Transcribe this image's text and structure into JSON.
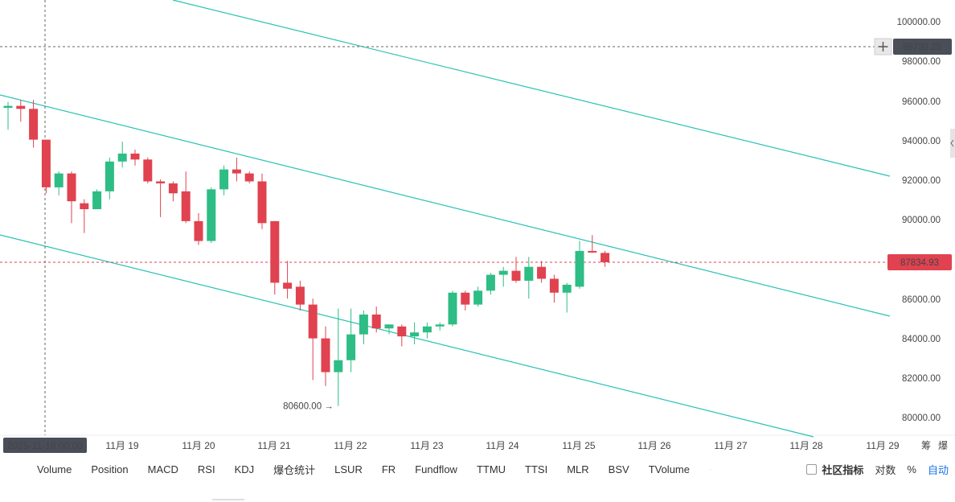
{
  "chart_data": {
    "type": "candlestick",
    "y_axis_ticks": [
      "100000.00",
      "98000.00",
      "96000.00",
      "94000.00",
      "92000.00",
      "90000.00",
      "86000.00",
      "84000.00",
      "82000.00",
      "80000.00"
    ],
    "x_axis_ticks": [
      "11月 19",
      "11月 20",
      "11月 21",
      "11月 22",
      "11月 23",
      "11月 24",
      "11月 25",
      "11月 26",
      "11月 27",
      "11月 28",
      "11月 29"
    ],
    "crosshair_price": "98730.25",
    "crosshair_date": "2025-11-18 00:00",
    "current_price": "87834.93",
    "low_annotation": "80600.00",
    "bull_color": "#2ebd85",
    "bear_color": "#e0424f",
    "candles": [
      {
        "o": 95600,
        "h": 95900,
        "l": 94500,
        "c": 95700
      },
      {
        "o": 95700,
        "h": 96000,
        "l": 94900,
        "c": 95550
      },
      {
        "o": 95550,
        "h": 96000,
        "l": 93600,
        "c": 94000
      },
      {
        "o": 94000,
        "h": 94000,
        "l": 91300,
        "c": 91600
      },
      {
        "o": 91600,
        "h": 92400,
        "l": 91200,
        "c": 92300
      },
      {
        "o": 92300,
        "h": 92400,
        "l": 89800,
        "c": 90900
      },
      {
        "o": 90800,
        "h": 91000,
        "l": 89300,
        "c": 90500
      },
      {
        "o": 90500,
        "h": 91500,
        "l": 90500,
        "c": 91400
      },
      {
        "o": 91400,
        "h": 93100,
        "l": 91000,
        "c": 92900
      },
      {
        "o": 92900,
        "h": 93900,
        "l": 92600,
        "c": 93300
      },
      {
        "o": 93300,
        "h": 93500,
        "l": 92700,
        "c": 93000
      },
      {
        "o": 93000,
        "h": 93100,
        "l": 91800,
        "c": 91900
      },
      {
        "o": 91900,
        "h": 92000,
        "l": 90100,
        "c": 91800
      },
      {
        "o": 91800,
        "h": 91900,
        "l": 90900,
        "c": 91300
      },
      {
        "o": 91400,
        "h": 92400,
        "l": 89800,
        "c": 89900
      },
      {
        "o": 89900,
        "h": 90300,
        "l": 88700,
        "c": 88900
      },
      {
        "o": 88900,
        "h": 91600,
        "l": 88800,
        "c": 91500
      },
      {
        "o": 91500,
        "h": 92700,
        "l": 91200,
        "c": 92500
      },
      {
        "o": 92500,
        "h": 93100,
        "l": 91900,
        "c": 92300
      },
      {
        "o": 92300,
        "h": 92400,
        "l": 91800,
        "c": 91900
      },
      {
        "o": 91900,
        "h": 92300,
        "l": 89500,
        "c": 89800
      },
      {
        "o": 89900,
        "h": 89900,
        "l": 86200,
        "c": 86800
      },
      {
        "o": 86800,
        "h": 87900,
        "l": 86000,
        "c": 86500
      },
      {
        "o": 86600,
        "h": 86900,
        "l": 85400,
        "c": 85700
      },
      {
        "o": 85700,
        "h": 86000,
        "l": 81900,
        "c": 84000
      },
      {
        "o": 84000,
        "h": 84600,
        "l": 81600,
        "c": 82300
      },
      {
        "o": 82300,
        "h": 85500,
        "l": 80600,
        "c": 82900
      },
      {
        "o": 82900,
        "h": 85500,
        "l": 82300,
        "c": 84200
      },
      {
        "o": 84200,
        "h": 85400,
        "l": 83700,
        "c": 85200
      },
      {
        "o": 85200,
        "h": 85600,
        "l": 84300,
        "c": 84500
      },
      {
        "o": 84500,
        "h": 84700,
        "l": 84200,
        "c": 84700
      },
      {
        "o": 84600,
        "h": 84700,
        "l": 83600,
        "c": 84100
      },
      {
        "o": 84100,
        "h": 84800,
        "l": 83700,
        "c": 84300
      },
      {
        "o": 84300,
        "h": 84800,
        "l": 84000,
        "c": 84600
      },
      {
        "o": 84600,
        "h": 84800,
        "l": 84400,
        "c": 84700
      },
      {
        "o": 84700,
        "h": 86400,
        "l": 84600,
        "c": 86300
      },
      {
        "o": 86300,
        "h": 86400,
        "l": 85400,
        "c": 85700
      },
      {
        "o": 85700,
        "h": 86600,
        "l": 85600,
        "c": 86400
      },
      {
        "o": 86400,
        "h": 87300,
        "l": 86200,
        "c": 87200
      },
      {
        "o": 87200,
        "h": 87600,
        "l": 86600,
        "c": 87400
      },
      {
        "o": 87400,
        "h": 88100,
        "l": 86800,
        "c": 86900
      },
      {
        "o": 86900,
        "h": 88100,
        "l": 86000,
        "c": 87600
      },
      {
        "o": 87600,
        "h": 87900,
        "l": 86800,
        "c": 87000
      },
      {
        "o": 87000,
        "h": 87200,
        "l": 85800,
        "c": 86300
      },
      {
        "o": 86300,
        "h": 86800,
        "l": 85300,
        "c": 86700
      },
      {
        "o": 86600,
        "h": 88900,
        "l": 86500,
        "c": 88400
      },
      {
        "o": 88400,
        "h": 89200,
        "l": 88300,
        "c": 88350
      },
      {
        "o": 88300,
        "h": 88400,
        "l": 87600,
        "c": 87830
      }
    ]
  },
  "axis_extra": {
    "label1": "筹",
    "label2": "爆"
  },
  "toolbar": {
    "indicators": [
      "Volume",
      "Position",
      "MACD",
      "RSI",
      "KDJ",
      "爆仓统计",
      "LSUR",
      "FR",
      "Fundflow",
      "TTMU",
      "TTSI",
      "MLR",
      "BSV",
      "TVolume"
    ],
    "dot": "·",
    "community": "社区指标",
    "log": "对数",
    "percent": "%",
    "auto": "自动"
  }
}
